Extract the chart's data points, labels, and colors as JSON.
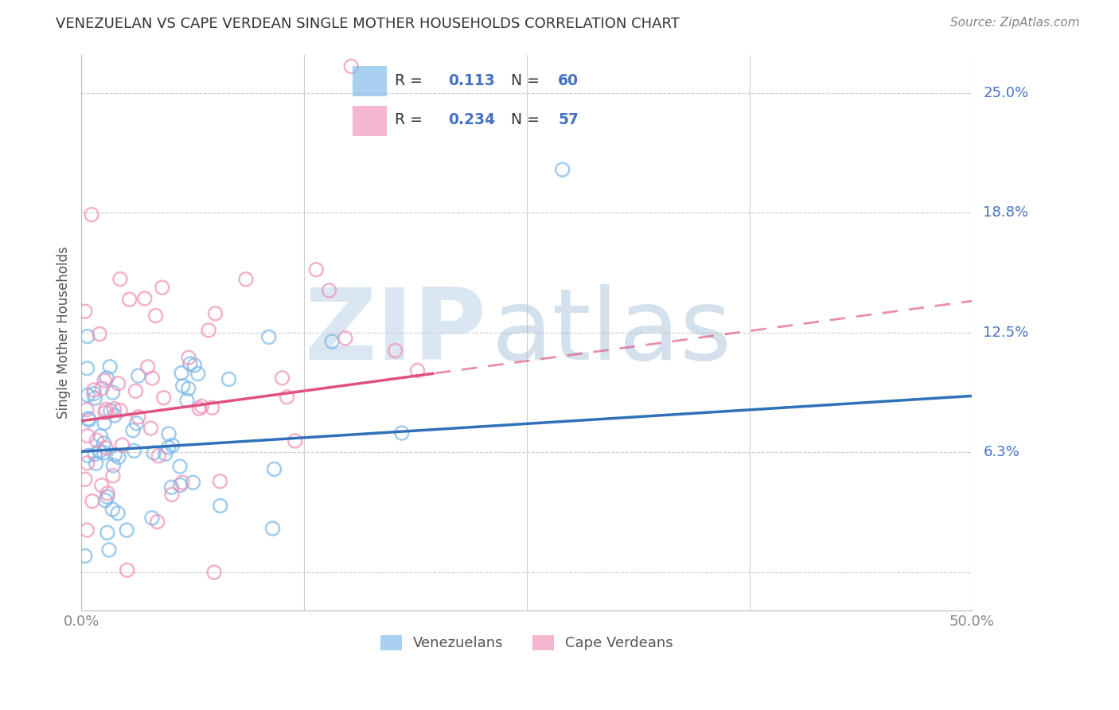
{
  "title": "VENEZUELAN VS CAPE VERDEAN SINGLE MOTHER HOUSEHOLDS CORRELATION CHART",
  "source": "Source: ZipAtlas.com",
  "ylabel": "Single Mother Households",
  "xlim": [
    0.0,
    0.5
  ],
  "ylim": [
    -0.02,
    0.27
  ],
  "ytick_vals": [
    0.0,
    0.0625,
    0.125,
    0.1875,
    0.25
  ],
  "ytick_labels_right": [
    "",
    "6.3%",
    "12.5%",
    "18.8%",
    "25.0%"
  ],
  "xtick_vals": [
    0.0,
    0.125,
    0.25,
    0.375,
    0.5
  ],
  "xtick_labels": [
    "0.0%",
    "",
    "",
    "",
    "50.0%"
  ],
  "r_venezuelan": 0.113,
  "n_venezuelan": 60,
  "r_capeverdean": 0.234,
  "n_capeverdean": 57,
  "color_venezuelan": "#7ab8e8",
  "color_capeverdean": "#f090b8",
  "legend_text_color": "#4472c4",
  "watermark_zip_color": "#bdd4e8",
  "watermark_atlas_color": "#a0bcd4",
  "background_color": "#ffffff",
  "grid_color": "#cccccc",
  "title_color": "#333333",
  "source_color": "#888888",
  "ven_line_color": "#3070b8",
  "cv_line_color": "#e05080",
  "bottom_legend_label1": "Venezuelans",
  "bottom_legend_label2": "Cape Verdeans"
}
